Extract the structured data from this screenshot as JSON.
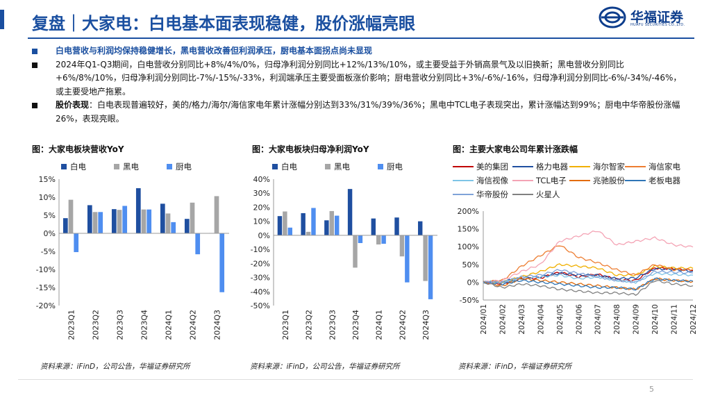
{
  "header": {
    "title": "复盘｜大家电：白电基本面表现稳健，股价涨幅亮眼",
    "logo_name": "华福证券",
    "logo_sub": "HUAFU SECURITIES CO.,LTD."
  },
  "bullets": {
    "b1": "白电营收与利润均保持稳健增长，黑电营收改善但利润承压，厨电基本面拐点尚未显现",
    "b2": "2024年Q1-Q3期间，白电营收分别同比+8%/4%/0%，归母净利润分别同比+12%/13%/10%，或主要受益于外销高景气及以旧换新；黑电营收分别同比+6%/8%/10%，归母净利润分别同比-7%/-15%/-33%，利润端承压主要受面板涨价影响；厨电营收分别同比+3%/-6%/-16%，归母净利润分别同比-6%/-34%/-46%，或主要受地产拖累。",
    "b3_label": "股价表现",
    "b3_text": "：白电表现普遍较好，美的/格力/海尔/海信家电年累计涨幅分别达到33%/31%/39%/36%；黑电中TCL电子表现突出，累计涨幅达到99%；厨电中华帝股份涨幅26%，表现亮眼。"
  },
  "charts": {
    "c1_title": "图：大家电板块营收YoY",
    "c2_title": "图：大家电板块归母净利润YoY",
    "c3_title": "图：主要大家电公司年累计涨跌幅",
    "source1": "资料来源：iFinD，公司公告，华福证券研究所",
    "source2": "资料来源：iFinD，公司公告，华福证券研究所",
    "source3": "资料来源：iFinD，华福证券研究所"
  },
  "page_number": "5",
  "colors": {
    "white_elec": "#1f4fa0",
    "black_elec": "#a6a6a6",
    "kitchen": "#4f8ef0",
    "brand": "#1a4fa0"
  },
  "chart_data": [
    {
      "type": "bar",
      "title": "图：大家电板块营收YoY",
      "categories": [
        "2023Q1",
        "2023Q2",
        "2023Q3",
        "2023Q4",
        "2024Q1",
        "2024Q2",
        "2024Q3"
      ],
      "series": [
        {
          "name": "白电",
          "values": [
            4.2,
            7.8,
            6.7,
            12.5,
            8.2,
            4.0,
            0.1
          ]
        },
        {
          "name": "黑电",
          "values": [
            9.3,
            5.9,
            6.5,
            6.6,
            5.5,
            8.5,
            10.3
          ]
        },
        {
          "name": "厨电",
          "values": [
            -5.2,
            5.9,
            7.6,
            6.6,
            3.1,
            -5.8,
            -16.3
          ]
        }
      ],
      "ylim": [
        -20,
        15
      ],
      "yticks": [
        "15%",
        "10%",
        "5%",
        "0%",
        "-5%",
        "-10%",
        "-15%",
        "-20%"
      ],
      "ytick_values": [
        15,
        10,
        5,
        0,
        -5,
        -10,
        -15,
        -20
      ]
    },
    {
      "type": "bar",
      "title": "图：大家电板块归母净利润YoY",
      "categories": [
        "2023Q1",
        "2023Q2",
        "2023Q3",
        "2023Q4",
        "2024Q1",
        "2024Q2",
        "2024Q3"
      ],
      "series": [
        {
          "name": "白电",
          "values": [
            13.7,
            15.8,
            10.7,
            33.0,
            12.0,
            12.7,
            10.0
          ]
        },
        {
          "name": "黑电",
          "values": [
            17.0,
            2.5,
            17.3,
            -23.0,
            -6.5,
            -15.0,
            -32.5
          ]
        },
        {
          "name": "厨电",
          "values": [
            5.5,
            19.5,
            14.0,
            -5.5,
            -6.0,
            -33.5,
            -45.5
          ]
        }
      ],
      "ylim": [
        -50,
        40
      ],
      "yticks": [
        "40%",
        "30%",
        "20%",
        "10%",
        "0%",
        "-10%",
        "-20%",
        "-30%",
        "-40%",
        "-50%"
      ],
      "ytick_values": [
        40,
        30,
        20,
        10,
        0,
        -10,
        -20,
        -30,
        -40,
        -50
      ]
    },
    {
      "type": "line",
      "title": "图：主要大家电公司年累计涨跌幅",
      "x": [
        "2024/01",
        "2024/02",
        "2024/03",
        "2024/04",
        "2024/05",
        "2024/06",
        "2024/07",
        "2024/08",
        "2024/09",
        "2024/10",
        "2024/11",
        "2024/12"
      ],
      "ylim": [
        -50,
        200
      ],
      "yticks": [
        "200%",
        "150%",
        "100%",
        "50%",
        "0%",
        "-50%"
      ],
      "ytick_values": [
        200,
        150,
        100,
        50,
        0,
        -50
      ],
      "series": [
        {
          "name": "美的集团",
          "color": "#c00000",
          "values": [
            0,
            -4,
            10,
            12,
            28,
            15,
            22,
            8,
            5,
            40,
            38,
            33
          ]
        },
        {
          "name": "格力电器",
          "color": "#1f4fa0",
          "values": [
            0,
            2,
            12,
            15,
            25,
            20,
            20,
            10,
            12,
            38,
            36,
            31
          ]
        },
        {
          "name": "海尔智家",
          "color": "#f0b000",
          "values": [
            0,
            0,
            15,
            30,
            50,
            45,
            40,
            20,
            20,
            45,
            40,
            39
          ]
        },
        {
          "name": "海信家电",
          "color": "#ed7d31",
          "values": [
            0,
            5,
            45,
            75,
            105,
            70,
            55,
            35,
            20,
            50,
            35,
            36
          ]
        },
        {
          "name": "海信视像",
          "color": "#7ec4e6",
          "values": [
            0,
            0,
            10,
            15,
            20,
            10,
            15,
            5,
            0,
            25,
            22,
            20
          ]
        },
        {
          "name": "TCL电子",
          "color": "#f4a3b4",
          "values": [
            0,
            5,
            30,
            50,
            115,
            130,
            145,
            105,
            115,
            125,
            105,
            99
          ]
        },
        {
          "name": "兆驰股份",
          "color": "#e36c0a",
          "values": [
            0,
            -10,
            10,
            5,
            0,
            -5,
            -10,
            -15,
            -20,
            10,
            5,
            2
          ]
        },
        {
          "name": "老板电器",
          "color": "#2e75b6",
          "values": [
            0,
            -5,
            5,
            0,
            -5,
            -10,
            -15,
            -15,
            -20,
            10,
            5,
            3
          ]
        },
        {
          "name": "华帝股份",
          "color": "#7fa2d8",
          "values": [
            0,
            0,
            15,
            20,
            35,
            25,
            15,
            5,
            0,
            30,
            28,
            26
          ]
        },
        {
          "name": "火星人",
          "color": "#808080",
          "values": [
            0,
            -15,
            -5,
            -10,
            -20,
            -25,
            -30,
            -30,
            -35,
            5,
            -5,
            -10
          ]
        }
      ]
    }
  ]
}
